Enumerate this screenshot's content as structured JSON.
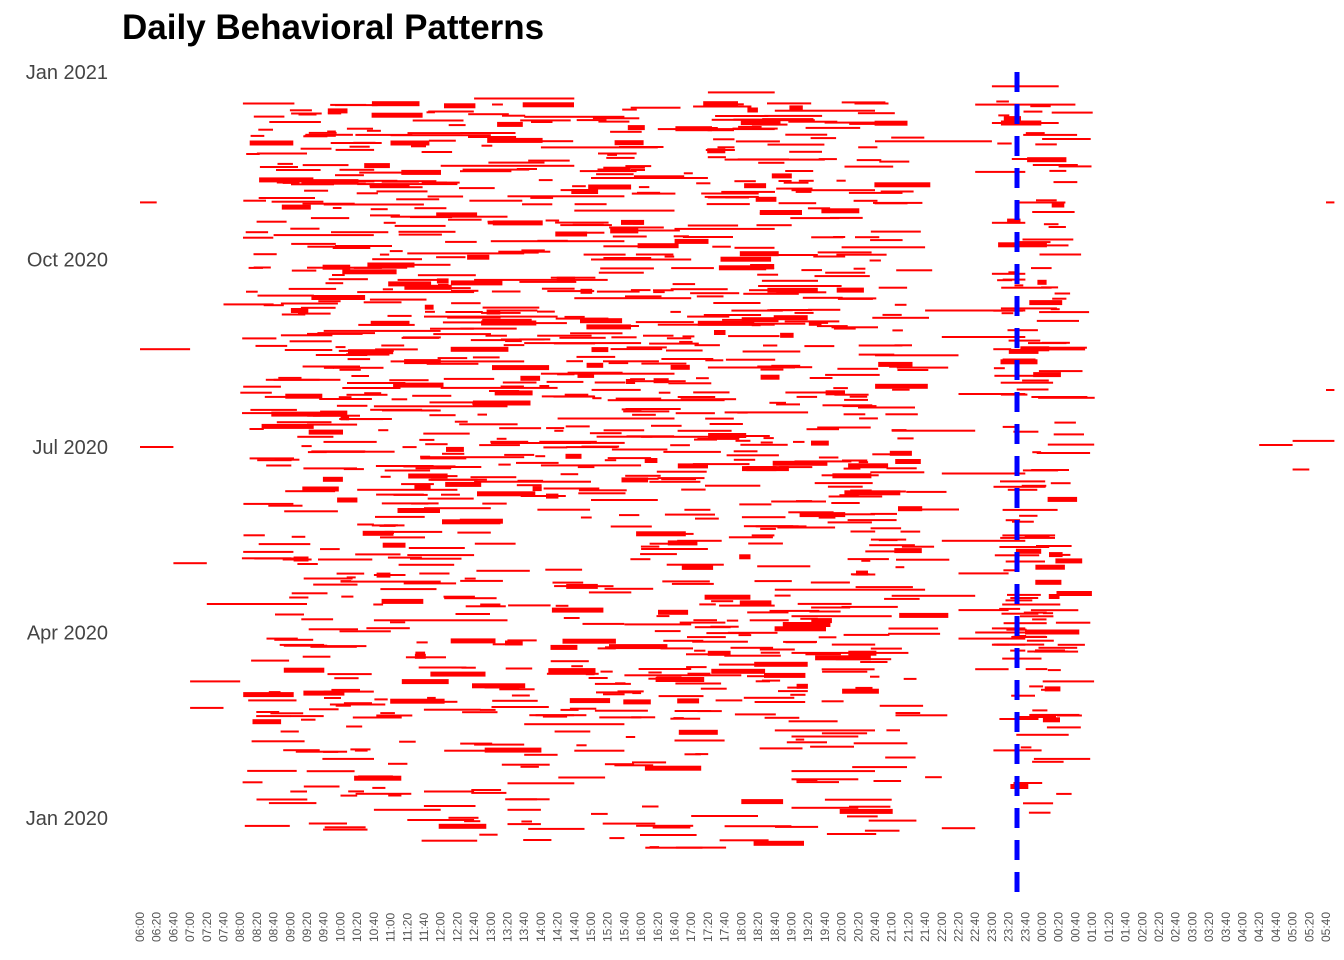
{
  "chart_data": {
    "type": "bar",
    "title": "Daily Behavioral Patterns",
    "xlabel": "",
    "ylabel": "",
    "x_axis": {
      "type": "time_of_day",
      "start": "06:00",
      "end": "05:50",
      "tick_step_minutes": 20,
      "tick_labels": [
        "06:00",
        "06:20",
        "06:40",
        "07:00",
        "07:20",
        "07:40",
        "08:00",
        "08:20",
        "08:40",
        "09:00",
        "09:20",
        "09:40",
        "10:00",
        "10:20",
        "10:40",
        "11:00",
        "11:20",
        "11:40",
        "12:00",
        "12:20",
        "12:40",
        "13:00",
        "13:20",
        "13:40",
        "14:00",
        "14:20",
        "14:40",
        "15:00",
        "15:20",
        "15:40",
        "16:00",
        "16:20",
        "16:40",
        "17:00",
        "17:20",
        "17:40",
        "18:00",
        "18:20",
        "18:40",
        "19:00",
        "19:20",
        "19:40",
        "20:00",
        "20:20",
        "20:40",
        "21:00",
        "21:20",
        "21:40",
        "22:00",
        "22:20",
        "22:40",
        "23:00",
        "23:20",
        "23:40",
        "00:00",
        "00:20",
        "00:40",
        "01:00",
        "01:20",
        "01:40",
        "02:00",
        "02:20",
        "02:40",
        "03:00",
        "03:20",
        "03:40",
        "04:00",
        "04:20",
        "04:40",
        "05:00",
        "05:20",
        "05:40"
      ]
    },
    "y_axis": {
      "type": "date",
      "range": [
        "2019-12-15",
        "2021-01-01"
      ],
      "tick_labels": [
        "Jan 2020",
        "Apr 2020",
        "Jul 2020",
        "Oct 2020",
        "Jan 2021"
      ],
      "tick_dates": [
        "2020-01-01",
        "2020-04-01",
        "2020-07-01",
        "2020-10-01",
        "2021-01-01"
      ]
    },
    "series": [
      {
        "color": "#ff0000",
        "description": "activity intervals per day (start time, end time)",
        "values": [
          {
            "date": "2020-01-14",
            "start": "09:00",
            "end": "09:20"
          },
          {
            "date": "2020-01-12",
            "start": "10:00",
            "end": "10:20"
          },
          {
            "date": "2020-01-05",
            "start": "10:40",
            "end": "12:00"
          },
          {
            "date": "2020-01-05",
            "start": "13:20",
            "end": "14:00"
          },
          {
            "date": "2020-01-03",
            "start": "15:00",
            "end": "15:20"
          },
          {
            "date": "2020-01-02",
            "start": "17:00",
            "end": "18:20"
          },
          {
            "date": "2019-12-31",
            "start": "11:20",
            "end": "12:40"
          },
          {
            "date": "2019-12-29",
            "start": "13:20",
            "end": "14:00"
          },
          {
            "date": "2019-12-28",
            "start": "17:40",
            "end": "19:00"
          },
          {
            "date": "2020-01-06",
            "start": "19:00",
            "end": "20:20"
          },
          {
            "date": "2020-01-10",
            "start": "19:40",
            "end": "21:00"
          },
          {
            "date": "2019-12-27",
            "start": "22:00",
            "end": "22:40"
          },
          {
            "date": "2020-01-14",
            "start": "11:40",
            "end": "12:40"
          },
          {
            "date": "2020-01-18",
            "start": "13:20",
            "end": "14:40"
          },
          {
            "date": "2020-01-20",
            "start": "19:00",
            "end": "20:20"
          },
          {
            "date": "2020-01-24",
            "start": "19:00",
            "end": "20:40"
          },
          {
            "date": "2020-01-21",
            "start": "21:40",
            "end": "22:00"
          },
          {
            "date": "2020-02-01",
            "start": "13:40",
            "end": "14:20"
          },
          {
            "date": "2020-02-03",
            "start": "14:40",
            "end": "15:40"
          },
          {
            "date": "2020-02-06",
            "start": "12:40",
            "end": "13:40"
          },
          {
            "date": "2020-02-08",
            "start": "16:40",
            "end": "17:40"
          },
          {
            "date": "2020-02-10",
            "start": "19:00",
            "end": "20:20"
          },
          {
            "date": "2020-02-13",
            "start": "18:40",
            "end": "20:40"
          },
          {
            "date": "2020-02-16",
            "start": "13:40",
            "end": "15:40"
          },
          {
            "date": "2020-02-20",
            "start": "09:00",
            "end": "09:40"
          },
          {
            "date": "2020-02-24",
            "start": "07:00",
            "end": "07:40"
          },
          {
            "date": "2020-02-27",
            "start": "11:00",
            "end": "12:20"
          },
          {
            "date": "2020-03-03",
            "start": "09:40",
            "end": "10:40"
          },
          {
            "date": "2020-03-08",
            "start": "07:00",
            "end": "08:00"
          },
          {
            "date": "2020-03-11",
            "start": "15:40",
            "end": "18:00"
          },
          {
            "date": "2020-03-14",
            "start": "22:40",
            "end": "23:20"
          },
          {
            "date": "2020-03-22",
            "start": "19:00",
            "end": "21:20"
          },
          {
            "date": "2020-03-26",
            "start": "23:00",
            "end": "23:40"
          },
          {
            "date": "2020-03-29",
            "start": "22:20",
            "end": "23:40"
          },
          {
            "date": "2020-04-01",
            "start": "22:40",
            "end": "23:40"
          },
          {
            "date": "2020-04-03",
            "start": "23:00",
            "end": "23:40"
          },
          {
            "date": "2020-04-05",
            "start": "15:40",
            "end": "17:00"
          },
          {
            "date": "2020-04-07",
            "start": "10:40",
            "end": "13:20"
          },
          {
            "date": "2020-04-09",
            "start": "19:00",
            "end": "21:00"
          },
          {
            "date": "2020-04-12",
            "start": "22:20",
            "end": "23:20"
          },
          {
            "date": "2020-04-15",
            "start": "07:20",
            "end": "09:20"
          },
          {
            "date": "2020-04-19",
            "start": "21:00",
            "end": "22:40"
          },
          {
            "date": "2020-04-22",
            "start": "18:40",
            "end": "21:40"
          },
          {
            "date": "2020-04-26",
            "start": "10:00",
            "end": "12:00"
          },
          {
            "date": "2020-04-30",
            "start": "22:20",
            "end": "23:20"
          },
          {
            "date": "2020-05-05",
            "start": "06:40",
            "end": "07:20"
          },
          {
            "date": "2020-05-09",
            "start": "11:20",
            "end": "12:40"
          },
          {
            "date": "2020-05-12",
            "start": "16:00",
            "end": "17:20"
          },
          {
            "date": "2020-05-16",
            "start": "22:00",
            "end": "23:40"
          },
          {
            "date": "2020-05-20",
            "start": "12:20",
            "end": "13:00"
          },
          {
            "date": "2020-05-24",
            "start": "10:20",
            "end": "10:40"
          },
          {
            "date": "2020-05-29",
            "start": "19:40",
            "end": "20:40"
          },
          {
            "date": "2020-06-01",
            "start": "11:40",
            "end": "13:00"
          },
          {
            "date": "2020-06-05",
            "start": "15:00",
            "end": "16:20"
          },
          {
            "date": "2020-06-10",
            "start": "10:20",
            "end": "12:20"
          },
          {
            "date": "2020-06-14",
            "start": "12:40",
            "end": "15:00"
          },
          {
            "date": "2020-06-18",
            "start": "22:00",
            "end": "23:40"
          },
          {
            "date": "2020-06-22",
            "start": "14:00",
            "end": "16:00"
          },
          {
            "date": "2020-06-26",
            "start": "11:40",
            "end": "13:40"
          },
          {
            "date": "2020-07-01",
            "start": "06:00",
            "end": "06:40"
          },
          {
            "date": "2020-07-03",
            "start": "13:00",
            "end": "15:00"
          },
          {
            "date": "2020-07-06",
            "start": "16:00",
            "end": "18:00"
          },
          {
            "date": "2020-07-09",
            "start": "21:00",
            "end": "22:40"
          },
          {
            "date": "2020-07-12",
            "start": "09:20",
            "end": "10:20"
          },
          {
            "date": "2020-07-15",
            "start": "14:20",
            "end": "16:40"
          },
          {
            "date": "2020-07-18",
            "start": "17:40",
            "end": "19:20"
          },
          {
            "date": "2020-07-21",
            "start": "10:40",
            "end": "13:20"
          },
          {
            "date": "2020-07-24",
            "start": "15:20",
            "end": "17:40"
          },
          {
            "date": "2020-07-27",
            "start": "22:20",
            "end": "23:40"
          },
          {
            "date": "2020-07-30",
            "start": "12:00",
            "end": "14:20"
          },
          {
            "date": "2020-08-03",
            "start": "08:40",
            "end": "10:00"
          },
          {
            "date": "2020-08-06",
            "start": "14:00",
            "end": "16:40"
          },
          {
            "date": "2020-08-09",
            "start": "17:20",
            "end": "19:00"
          },
          {
            "date": "2020-08-12",
            "start": "11:00",
            "end": "13:40"
          },
          {
            "date": "2020-08-15",
            "start": "20:40",
            "end": "22:20"
          },
          {
            "date": "2020-08-18",
            "start": "06:00",
            "end": "07:00"
          },
          {
            "date": "2020-08-21",
            "start": "13:40",
            "end": "16:00"
          },
          {
            "date": "2020-08-24",
            "start": "22:00",
            "end": "23:40"
          },
          {
            "date": "2020-08-27",
            "start": "09:40",
            "end": "12:00"
          },
          {
            "date": "2020-08-30",
            "start": "16:20",
            "end": "18:40"
          },
          {
            "date": "2020-09-03",
            "start": "11:40",
            "end": "14:20"
          },
          {
            "date": "2020-09-06",
            "start": "21:40",
            "end": "23:40"
          },
          {
            "date": "2020-09-09",
            "start": "07:40",
            "end": "08:40"
          },
          {
            "date": "2020-09-12",
            "start": "14:40",
            "end": "17:00"
          },
          {
            "date": "2020-09-15",
            "start": "10:20",
            "end": "12:40"
          },
          {
            "date": "2020-09-18",
            "start": "18:20",
            "end": "20:00"
          },
          {
            "date": "2020-09-21",
            "start": "12:40",
            "end": "15:20"
          },
          {
            "date": "2020-09-24",
            "start": "23:00",
            "end": "23:40"
          },
          {
            "date": "2020-09-27",
            "start": "09:20",
            "end": "11:20"
          },
          {
            "date": "2020-10-01",
            "start": "15:00",
            "end": "17:00"
          },
          {
            "date": "2020-10-04",
            "start": "11:20",
            "end": "13:40"
          },
          {
            "date": "2020-10-07",
            "start": "20:00",
            "end": "21:40"
          },
          {
            "date": "2020-10-10",
            "start": "13:00",
            "end": "15:40"
          },
          {
            "date": "2020-10-13",
            "start": "08:40",
            "end": "10:40"
          },
          {
            "date": "2020-10-16",
            "start": "16:40",
            "end": "18:40"
          },
          {
            "date": "2020-10-19",
            "start": "23:00",
            "end": "23:40"
          },
          {
            "date": "2020-10-22",
            "start": "11:00",
            "end": "13:20"
          },
          {
            "date": "2020-10-25",
            "start": "14:40",
            "end": "16:40"
          },
          {
            "date": "2020-10-28",
            "start": "09:40",
            "end": "11:40"
          },
          {
            "date": "2020-11-01",
            "start": "13:20",
            "end": "15:40"
          },
          {
            "date": "2020-11-04",
            "start": "19:00",
            "end": "20:40"
          },
          {
            "date": "2020-11-07",
            "start": "10:20",
            "end": "12:20"
          },
          {
            "date": "2020-11-10",
            "start": "15:00",
            "end": "17:20"
          },
          {
            "date": "2020-11-13",
            "start": "22:40",
            "end": "23:40"
          },
          {
            "date": "2020-11-16",
            "start": "12:00",
            "end": "14:40"
          },
          {
            "date": "2020-11-19",
            "start": "17:40",
            "end": "19:40"
          },
          {
            "date": "2020-11-22",
            "start": "08:20",
            "end": "09:20"
          },
          {
            "date": "2020-11-25",
            "start": "14:00",
            "end": "16:20"
          },
          {
            "date": "2020-11-28",
            "start": "20:40",
            "end": "23:00"
          },
          {
            "date": "2020-12-01",
            "start": "11:00",
            "end": "13:00"
          },
          {
            "date": "2020-12-04",
            "start": "16:20",
            "end": "18:40"
          },
          {
            "date": "2020-12-07",
            "start": "23:00",
            "end": "00:20"
          },
          {
            "date": "2020-12-10",
            "start": "13:40",
            "end": "15:40"
          },
          {
            "date": "2020-12-13",
            "start": "18:40",
            "end": "20:40"
          },
          {
            "date": "2020-12-16",
            "start": "22:40",
            "end": "00:40"
          },
          {
            "date": "2020-12-19",
            "start": "12:40",
            "end": "14:40"
          },
          {
            "date": "2020-12-22",
            "start": "17:20",
            "end": "18:40"
          },
          {
            "date": "2020-12-25",
            "start": "23:00",
            "end": "00:20"
          },
          {
            "date": "2020-10-29",
            "start": "06:00",
            "end": "06:20"
          },
          {
            "date": "2020-10-29",
            "start": "05:40",
            "end": "05:50"
          },
          {
            "date": "2020-07-29",
            "start": "05:40",
            "end": "05:50"
          },
          {
            "date": "2020-07-02",
            "start": "04:20",
            "end": "05:00"
          },
          {
            "date": "2020-07-04",
            "start": "05:00",
            "end": "05:50"
          },
          {
            "date": "2020-06-20",
            "start": "05:00",
            "end": "05:20"
          }
        ]
      }
    ],
    "reference_lines": [
      {
        "axis": "x",
        "value": "23:30",
        "color": "#0000ff",
        "style": "dashed"
      }
    ],
    "grid": false,
    "legend": "none"
  }
}
